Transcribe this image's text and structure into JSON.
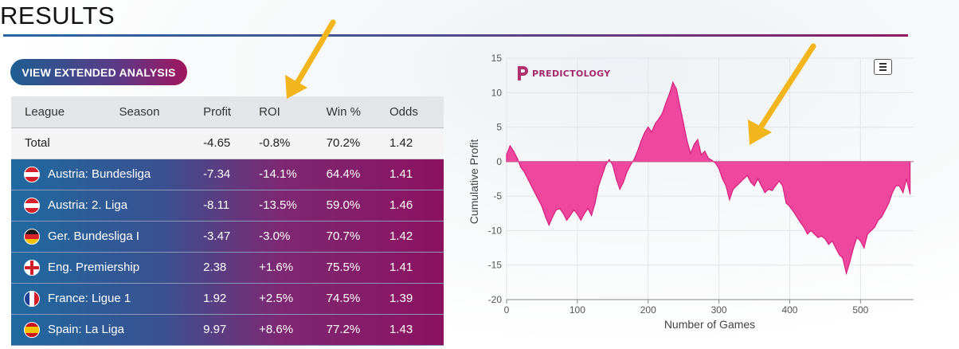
{
  "page": {
    "title": "RESULTS"
  },
  "analysis_button": {
    "label": "VIEW EXTENDED ANALYSIS"
  },
  "table": {
    "headers": {
      "league": "League",
      "season": "Season",
      "profit": "Profit",
      "roi": "ROI",
      "win": "Win %",
      "odds": "Odds"
    },
    "total": {
      "label": "Total",
      "profit": "-4.65",
      "roi": "-0.8%",
      "win": "70.2%",
      "odds": "1.42"
    },
    "rows": [
      {
        "flag": "austria-flag-icon",
        "league": "Austria: Bundesliga",
        "profit": "-7.34",
        "roi": "-14.1%",
        "win": "64.4%",
        "odds": "1.41"
      },
      {
        "flag": "austria-flag-icon",
        "league": "Austria: 2. Liga",
        "profit": "-8.11",
        "roi": "-13.5%",
        "win": "59.0%",
        "odds": "1.46"
      },
      {
        "flag": "germany-flag-icon",
        "league": "Ger. Bundesliga I",
        "profit": "-3.47",
        "roi": "-3.0%",
        "win": "70.7%",
        "odds": "1.42"
      },
      {
        "flag": "england-flag-icon",
        "league": "Eng. Premiership",
        "profit": "2.38",
        "roi": "+1.6%",
        "win": "75.5%",
        "odds": "1.41"
      },
      {
        "flag": "france-flag-icon",
        "league": "France: Ligue 1",
        "profit": "1.92",
        "roi": "+2.5%",
        "win": "74.5%",
        "odds": "1.39"
      },
      {
        "flag": "spain-flag-icon",
        "league": "Spain: La Liga",
        "profit": "9.97",
        "roi": "+8.6%",
        "win": "77.2%",
        "odds": "1.43"
      }
    ]
  },
  "chart": {
    "logo_text": "PREDICTOLOGY",
    "menu_icon": "hamburger-menu-icon"
  },
  "chart_data": {
    "type": "area",
    "title": "",
    "xlabel": "Number of Games",
    "ylabel": "Cumulative Profit",
    "xlim": [
      0,
      575
    ],
    "ylim": [
      -20,
      15
    ],
    "xticks": [
      0,
      100,
      200,
      300,
      400,
      500
    ],
    "yticks": [
      15,
      10,
      5,
      0,
      -5,
      -10,
      -15,
      -20
    ],
    "grid": true,
    "fill_color": "#ee3d98",
    "line_color": "#d61f7e",
    "series": [
      {
        "x": [
          0,
          5,
          10,
          15,
          20,
          25,
          30,
          35,
          40,
          45,
          50,
          55,
          60,
          65,
          70,
          75,
          80,
          85,
          90,
          95,
          100,
          105,
          110,
          115,
          120,
          125,
          130,
          135,
          140,
          145,
          150,
          155,
          160,
          165,
          170,
          175,
          180,
          185,
          190,
          195,
          200,
          205,
          210,
          215,
          220,
          225,
          230,
          235,
          240,
          245,
          250,
          255,
          260,
          265,
          270,
          275,
          280,
          285,
          290,
          295,
          300,
          305,
          310,
          315,
          320,
          325,
          330,
          335,
          340,
          345,
          350,
          355,
          360,
          365,
          370,
          375,
          380,
          385,
          390,
          395,
          400,
          405,
          410,
          415,
          420,
          425,
          430,
          435,
          440,
          445,
          450,
          455,
          460,
          465,
          470,
          475,
          480,
          485,
          490,
          495,
          500,
          505,
          510,
          515,
          520,
          525,
          530,
          535,
          540,
          545,
          550,
          555,
          560,
          565,
          570
        ],
        "y": [
          1,
          2.3,
          1.5,
          0.5,
          -0.8,
          -1.5,
          -2.5,
          -3.5,
          -4.5,
          -5.5,
          -6.5,
          -8,
          -9.2,
          -8,
          -7,
          -6.8,
          -7.5,
          -8.5,
          -7.8,
          -7,
          -7.6,
          -8.5,
          -7.5,
          -6.8,
          -7.8,
          -6,
          -3.5,
          -2,
          -0.5,
          0.3,
          -0.5,
          -2.5,
          -4,
          -3,
          -1.5,
          -0.5,
          0.3,
          1.5,
          3,
          4.2,
          5,
          4.3,
          5.5,
          6.2,
          7,
          8.5,
          9.8,
          11.5,
          10.5,
          8,
          5.5,
          3,
          1.2,
          2.5,
          3.2,
          1,
          1.5,
          0.5,
          0.2,
          -0.2,
          -1,
          -2.5,
          -3.5,
          -5.5,
          -4,
          -3.5,
          -3,
          -2.5,
          -2,
          -3,
          -3.5,
          -2.5,
          -3.5,
          -4.5,
          -4,
          -4.2,
          -3.5,
          -2.8,
          -3.5,
          -6,
          -6.5,
          -7.2,
          -8,
          -8.8,
          -9.5,
          -10.5,
          -10,
          -10.5,
          -11,
          -10.8,
          -11.2,
          -12,
          -11.5,
          -12.5,
          -13.5,
          -14,
          -16.2,
          -14.5,
          -12.5,
          -11,
          -11.5,
          -12.5,
          -10.5,
          -10,
          -9.5,
          -8.5,
          -8,
          -7,
          -6,
          -4.5,
          -3.5,
          -3.5,
          -4.5,
          -2.5,
          -4.7
        ]
      }
    ]
  }
}
